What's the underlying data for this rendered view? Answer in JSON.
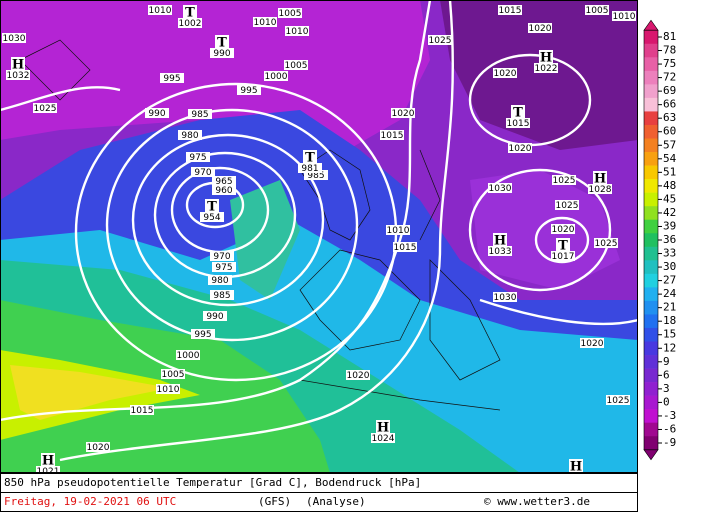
{
  "map": {
    "footer": {
      "title": "850 hPa pseudopotentielle Temperatur [Grad C], Bodendruck [hPa]",
      "date": "Freitag, 19-02-2021  06 UTC",
      "model": "(GFS)",
      "run": "(Analyse)",
      "credit": "© www.wetter3.de"
    },
    "legend": {
      "ticks": [
        81,
        78,
        75,
        72,
        69,
        66,
        63,
        60,
        57,
        54,
        51,
        48,
        45,
        42,
        39,
        36,
        33,
        30,
        27,
        24,
        21,
        18,
        15,
        12,
        9,
        6,
        3,
        0,
        -3,
        -6,
        -9
      ],
      "colors": [
        "#d8186e",
        "#e0408c",
        "#e860a6",
        "#ec80bc",
        "#f0a0cc",
        "#f8c0d8",
        "#e84040",
        "#f06030",
        "#f48020",
        "#f8a010",
        "#f8c800",
        "#f0e800",
        "#c8f000",
        "#90e020",
        "#40d040",
        "#20c060",
        "#20c090",
        "#20c0c0",
        "#20d0e0",
        "#20b0f0",
        "#2090f0",
        "#2070f0",
        "#3050e8",
        "#4838e0",
        "#6030d8",
        "#7828d0",
        "#9020d0",
        "#a818d0",
        "#c010d0",
        "#a00890",
        "#800070"
      ]
    },
    "centers": [
      {
        "type": "H",
        "value": "1032"
      },
      {
        "type": "T",
        "value": "1002"
      },
      {
        "type": "T",
        "value": "990"
      },
      {
        "type": "T",
        "value": "954"
      },
      {
        "type": "T",
        "value": "981"
      },
      {
        "type": "H",
        "value": "1022"
      },
      {
        "type": "T",
        "value": "1015"
      },
      {
        "type": "H",
        "value": "1028"
      },
      {
        "type": "H",
        "value": "1033"
      },
      {
        "type": "T",
        "value": "1017"
      },
      {
        "type": "H",
        "value": "1024"
      },
      {
        "type": "H",
        "value": "1021"
      },
      {
        "type": "H",
        "value": null
      }
    ],
    "isobar_labels": [
      "1030",
      "1025",
      "995",
      "990",
      "985",
      "980",
      "975",
      "970",
      "965",
      "960",
      "970",
      "975",
      "980",
      "985",
      "990",
      "995",
      "1000",
      "1005",
      "1010",
      "1015",
      "1020",
      "1020",
      "1010",
      "1015",
      "1015",
      "1020",
      "1005",
      "1000",
      "995",
      "1020",
      "1030",
      "1025",
      "1025",
      "1020",
      "1025",
      "1030",
      "1020",
      "1025",
      "1020",
      "1020",
      "1015",
      "1025",
      "1005",
      "1010",
      "1010",
      "1010",
      "1005",
      "1010",
      "985"
    ]
  }
}
